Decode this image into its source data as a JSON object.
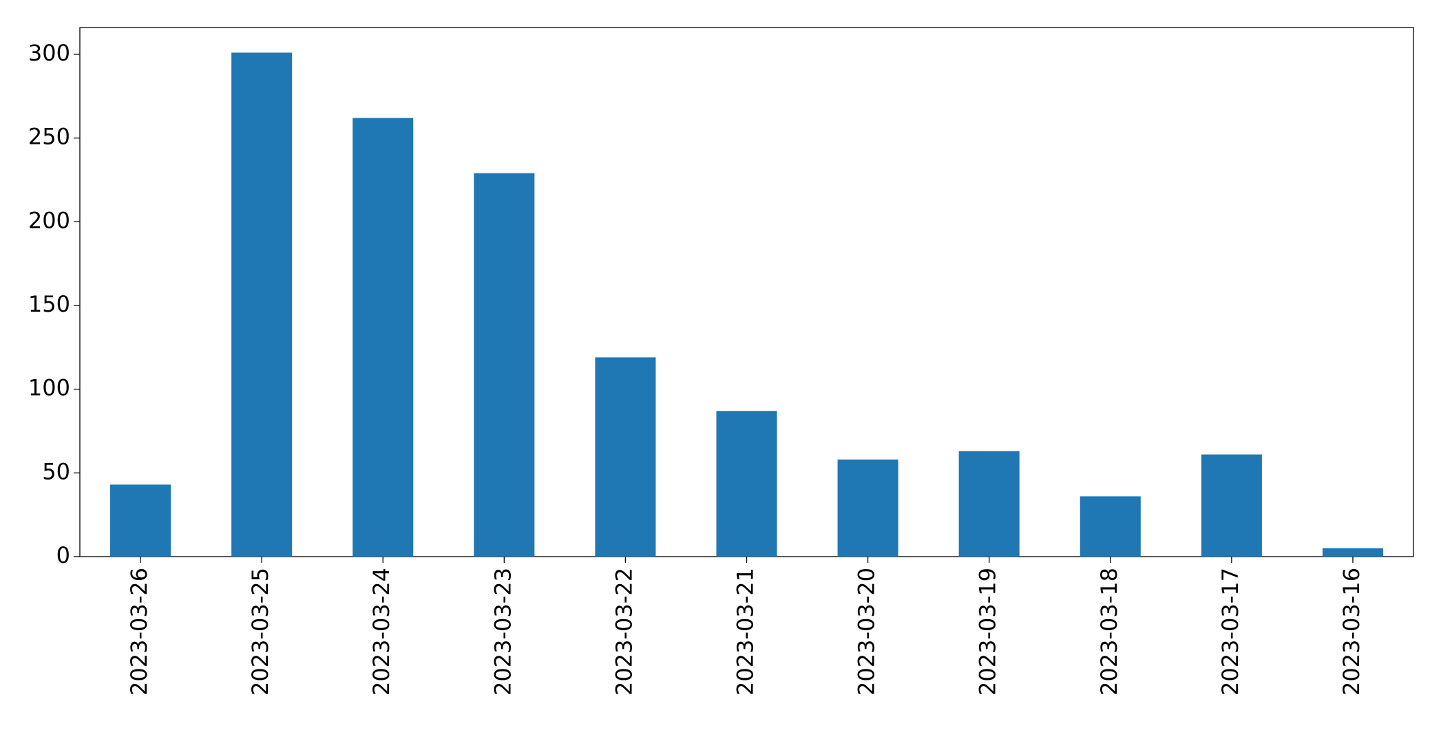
{
  "chart_data": {
    "type": "bar",
    "categories": [
      "2023-03-26",
      "2023-03-25",
      "2023-03-24",
      "2023-03-23",
      "2023-03-22",
      "2023-03-21",
      "2023-03-20",
      "2023-03-19",
      "2023-03-18",
      "2023-03-17",
      "2023-03-16"
    ],
    "values": [
      43,
      301,
      262,
      229,
      119,
      87,
      58,
      63,
      36,
      61,
      5
    ],
    "color": "#1f77b4",
    "ylim": [
      0,
      316
    ],
    "yticks": [
      0,
      50,
      100,
      150,
      200,
      250,
      300
    ],
    "grid": false
  }
}
